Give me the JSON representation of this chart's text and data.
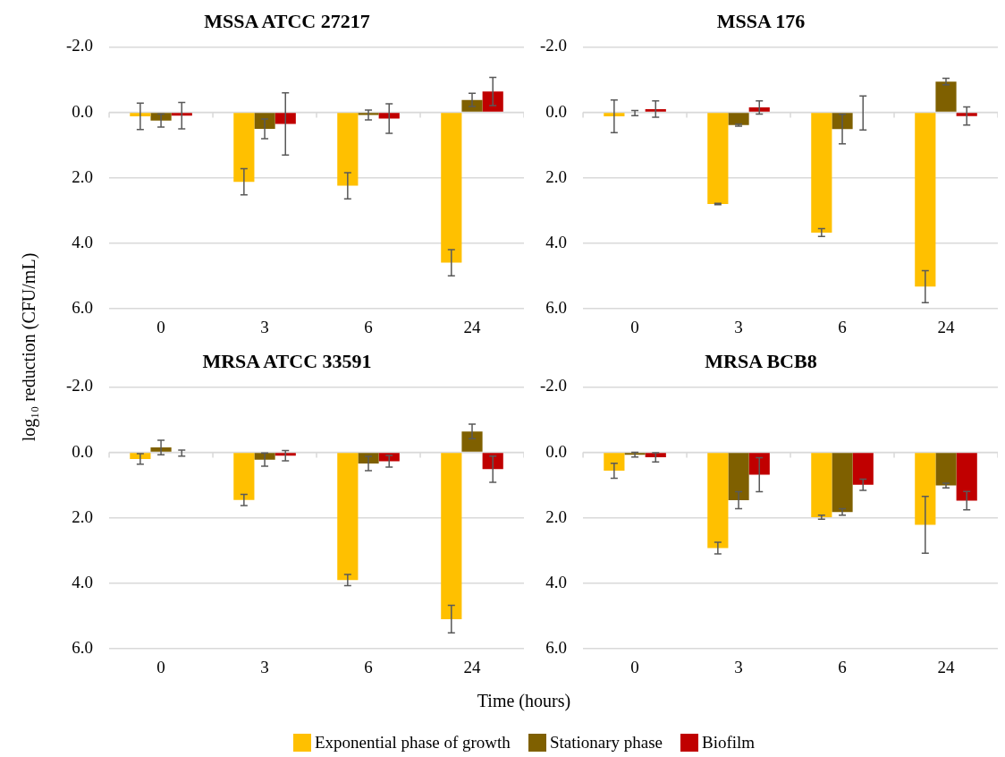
{
  "chart_data": [
    {
      "type": "bar",
      "title": "MSSA ATCC 27217",
      "ylabel": "log₁₀ reduction (CFU/mL)",
      "legend": "bottom",
      "grid": "y",
      "categories": [
        "0",
        "3",
        "6",
        "24"
      ],
      "ylim": [
        6,
        -2
      ],
      "yticks": [
        {
          "value": -2,
          "label": "-2.0"
        },
        {
          "value": 0,
          "label": "0.0"
        },
        {
          "value": 2,
          "label": "2.0"
        },
        {
          "value": 4,
          "label": "4.0"
        },
        {
          "value": 6,
          "label": "6.0"
        }
      ],
      "series": [
        {
          "name": "Exponential phase of growth",
          "color": "#ffc000",
          "values": [
            0.12,
            2.12,
            2.24,
            4.59
          ],
          "errors": [
            0.4,
            0.4,
            0.4,
            0.4
          ]
        },
        {
          "name": "Stationary phase",
          "color": "#7f6000",
          "values": [
            0.25,
            0.5,
            0.08,
            -0.38
          ],
          "errors": [
            0.2,
            0.3,
            0.15,
            0.2
          ]
        },
        {
          "name": "Biofilm",
          "color": "#c00000",
          "values": [
            0.1,
            0.35,
            0.19,
            -0.64
          ],
          "errors": [
            0.4,
            0.95,
            0.45,
            0.43
          ]
        }
      ]
    },
    {
      "type": "bar",
      "title": "MSSA 176",
      "grid": "y",
      "categories": [
        "0",
        "3",
        "6",
        "24"
      ],
      "ylim": [
        6,
        -2
      ],
      "yticks": [
        {
          "value": -2,
          "label": "-2.0"
        },
        {
          "value": 0,
          "label": "0.0"
        },
        {
          "value": 2,
          "label": "2.0"
        },
        {
          "value": 4,
          "label": "4.0"
        },
        {
          "value": 6,
          "label": "6.0"
        }
      ],
      "series": [
        {
          "color": "#ffc000",
          "values": [
            0.12,
            2.8,
            3.67,
            5.32
          ],
          "errors": [
            0.5,
            0.02,
            0.12,
            0.49
          ]
        },
        {
          "color": "#7f6000",
          "values": [
            0.02,
            0.39,
            0.51,
            -0.94
          ],
          "errors": [
            0.08,
            0.03,
            0.45,
            0.1
          ]
        },
        {
          "color": "#c00000",
          "values": [
            -0.1,
            -0.15,
            0.02,
            0.11
          ],
          "errors": [
            0.25,
            0.2,
            0.52,
            0.28
          ]
        }
      ]
    },
    {
      "type": "bar",
      "title": "MRSA ATCC 33591",
      "xlabel": "Time (hours)",
      "grid": "y",
      "categories": [
        "0",
        "3",
        "6",
        "24"
      ],
      "ylim": [
        6,
        -2
      ],
      "yticks": [
        {
          "value": -2,
          "label": "-2.0"
        },
        {
          "value": 0,
          "label": "0.0"
        },
        {
          "value": 2,
          "label": "2.0"
        },
        {
          "value": 4,
          "label": "4.0"
        },
        {
          "value": 6,
          "label": "6.0"
        }
      ],
      "series": [
        {
          "color": "#ffc000",
          "values": [
            0.2,
            1.45,
            3.9,
            5.09
          ],
          "errors": [
            0.16,
            0.17,
            0.17,
            0.42
          ]
        },
        {
          "color": "#7f6000",
          "values": [
            -0.15,
            0.22,
            0.34,
            -0.64
          ],
          "errors": [
            0.22,
            0.2,
            0.22,
            0.22
          ]
        },
        {
          "color": "#c00000",
          "values": [
            0.02,
            0.1,
            0.27,
            0.51
          ],
          "errors": [
            0.09,
            0.16,
            0.18,
            0.4
          ]
        }
      ]
    },
    {
      "type": "bar",
      "title": "MRSA BCB8",
      "grid": "y",
      "categories": [
        "0",
        "3",
        "6",
        "24"
      ],
      "ylim": [
        6,
        -2
      ],
      "yticks": [
        {
          "value": -2,
          "label": "-2.0"
        },
        {
          "value": 0,
          "label": "0.0"
        },
        {
          "value": 2,
          "label": "2.0"
        },
        {
          "value": 4,
          "label": "4.0"
        },
        {
          "value": 6,
          "label": "6.0"
        }
      ],
      "series": [
        {
          "color": "#ffc000",
          "values": [
            0.56,
            2.92,
            1.98,
            2.21
          ],
          "errors": [
            0.23,
            0.18,
            0.06,
            0.87
          ]
        },
        {
          "color": "#7f6000",
          "values": [
            0.07,
            1.46,
            1.82,
            1.01
          ],
          "errors": [
            0.07,
            0.26,
            0.1,
            0.07
          ]
        },
        {
          "color": "#c00000",
          "values": [
            0.15,
            0.68,
            0.99,
            1.47
          ],
          "errors": [
            0.14,
            0.52,
            0.17,
            0.28
          ]
        }
      ]
    }
  ]
}
